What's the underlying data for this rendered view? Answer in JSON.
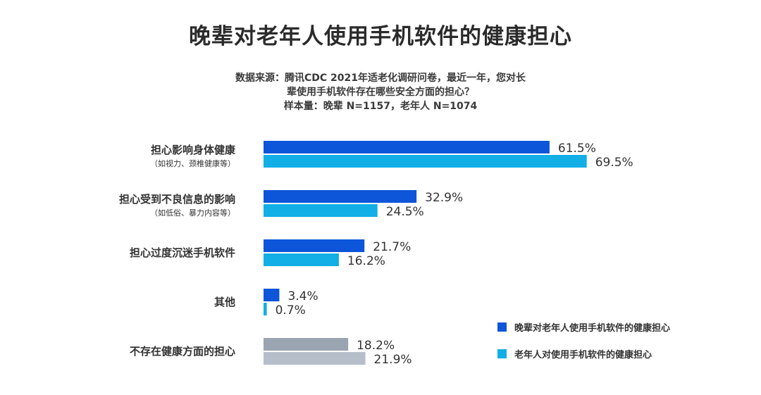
{
  "header": {
    "title": "晚辈对老年人使用手机软件的健康担心",
    "subtitle_lines": [
      "数据来源：腾讯CDC 2021年适老化调研问卷，最近一年，您对长",
      "辈使用手机软件存在哪些安全方面的担心？",
      "样本量：晚辈 N=1157，老年人 N=1074"
    ]
  },
  "chart_data": {
    "type": "bar",
    "orientation": "horizontal",
    "title": "晚辈对老年人使用手机软件的健康担心",
    "categories": [
      {
        "label": "担心影响身体健康",
        "sublabel": "（如视力、颈椎健康等）"
      },
      {
        "label": "担心受到不良信息的影响",
        "sublabel": "（如低俗、暴力内容等）"
      },
      {
        "label": "担心过度沉迷手机软件",
        "sublabel": ""
      },
      {
        "label": "其他",
        "sublabel": ""
      },
      {
        "label": "不存在健康方面的担心",
        "sublabel": ""
      }
    ],
    "series": [
      {
        "name": "晚辈对老年人使用手机软件的健康担心",
        "values": [
          61.5,
          32.9,
          21.7,
          3.4,
          18.2
        ],
        "value_labels": [
          "61.5%",
          "32.9%",
          "21.7%",
          "3.4%",
          "18.2%"
        ]
      },
      {
        "name": "老年人对使用手机软件的健康担心",
        "values": [
          69.5,
          24.5,
          16.2,
          0.7,
          21.9
        ],
        "value_labels": [
          "69.5%",
          "24.5%",
          "16.2%",
          "0.7%",
          "21.9%"
        ]
      }
    ],
    "xlim": [
      0,
      100
    ],
    "unit": "%",
    "grid": false,
    "legend_position": "bottom-right",
    "colors": {
      "series1": "#0d55d9",
      "series2": "#12aee6",
      "neutral1": "#9aa5b1",
      "neutral2": "#b6bfc9",
      "label_text": "#333333",
      "value_text": "#333333"
    },
    "neutral_category_index": 4
  }
}
